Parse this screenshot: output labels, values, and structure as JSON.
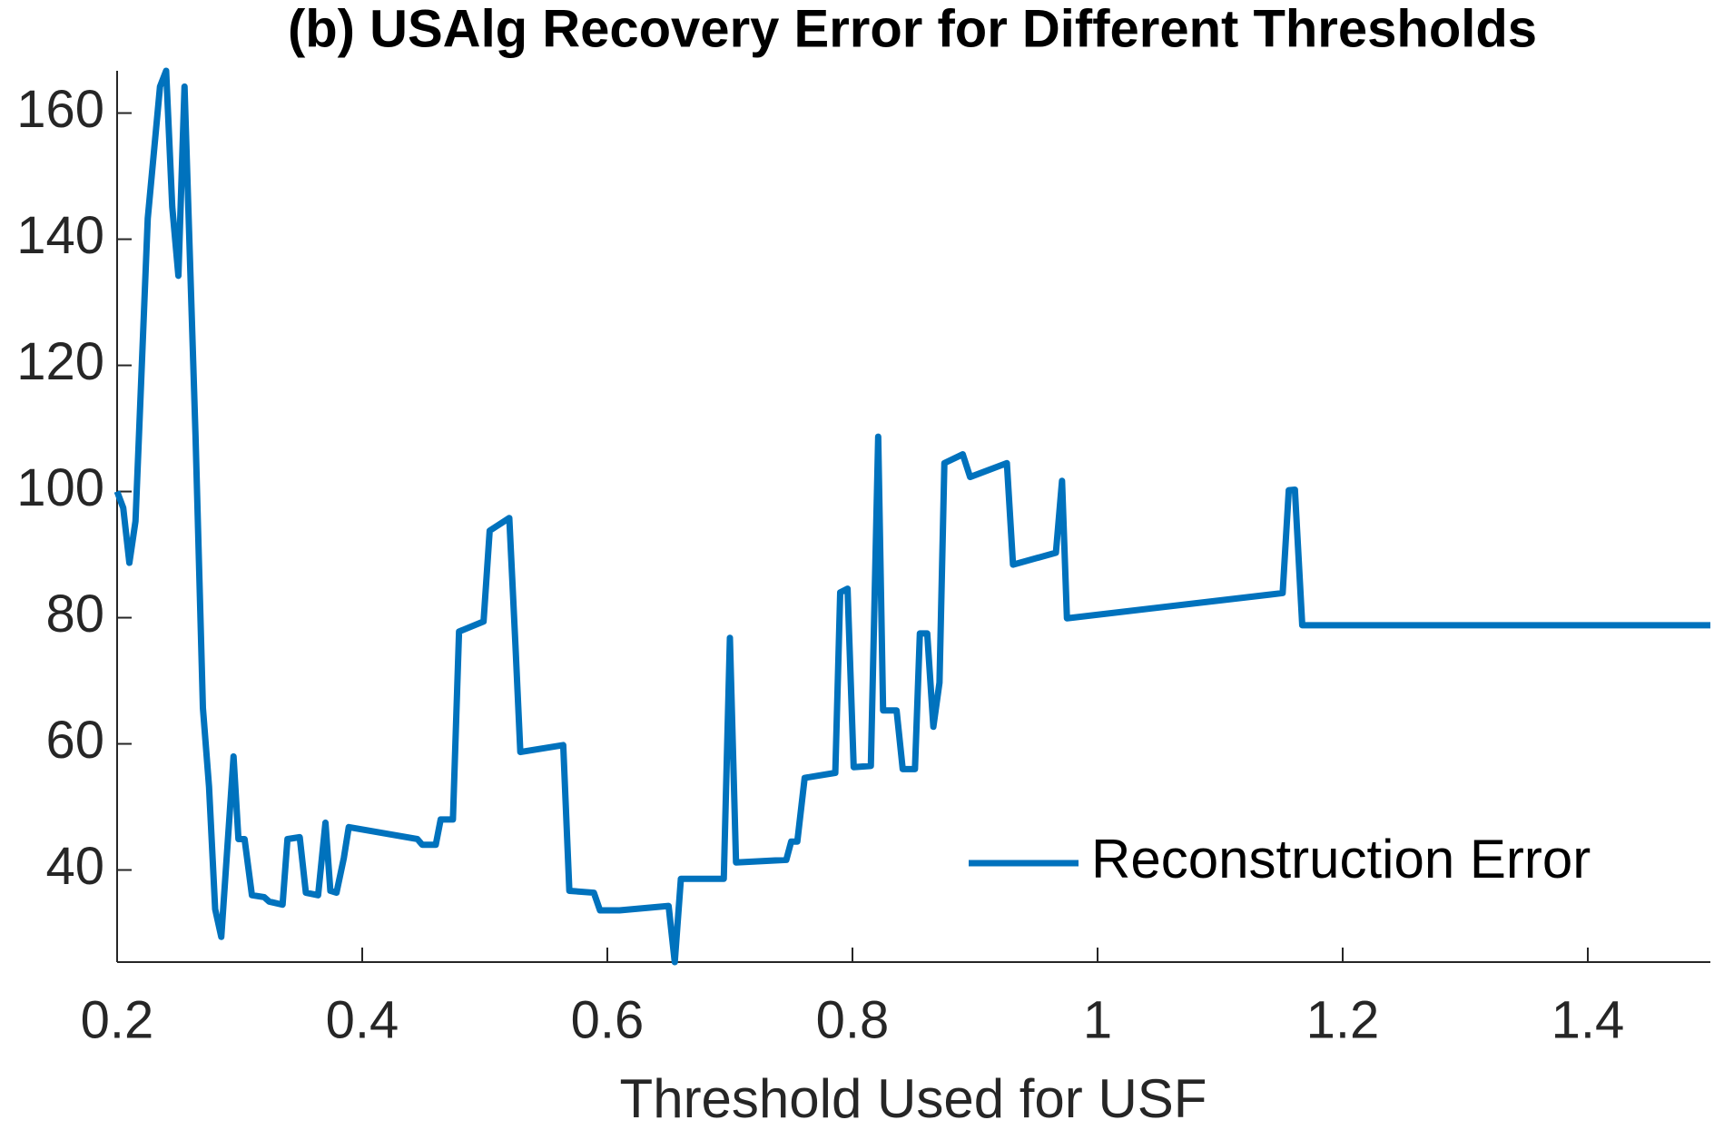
{
  "chart_data": {
    "type": "line",
    "title": "(b) USAlg Recovery Error for Different Thresholds",
    "xlabel": "Threshold Used for USF",
    "x": [
      0.2,
      0.205,
      0.21,
      0.215,
      0.225,
      0.235,
      0.24,
      0.245,
      0.25,
      0.255,
      0.264,
      0.27,
      0.275,
      0.28,
      0.285,
      0.295,
      0.299,
      0.304,
      0.31,
      0.32,
      0.324,
      0.335,
      0.339,
      0.349,
      0.354,
      0.364,
      0.37,
      0.374,
      0.379,
      0.385,
      0.389,
      0.445,
      0.449,
      0.46,
      0.464,
      0.474,
      0.479,
      0.499,
      0.504,
      0.52,
      0.525,
      0.529,
      0.564,
      0.569,
      0.589,
      0.594,
      0.61,
      0.65,
      0.655,
      0.66,
      0.695,
      0.7,
      0.705,
      0.746,
      0.75,
      0.755,
      0.761,
      0.786,
      0.79,
      0.796,
      0.801,
      0.815,
      0.821,
      0.825,
      0.836,
      0.841,
      0.851,
      0.855,
      0.861,
      0.866,
      0.871,
      0.875,
      0.89,
      0.896,
      0.926,
      0.931,
      0.966,
      0.971,
      0.975,
      1.151,
      1.156,
      1.161,
      1.167,
      1.5
    ],
    "series": [
      {
        "name": "Reconstruction Error",
        "color": "#0072bd",
        "values": [
          100.0,
          97.4,
          88.7,
          95.3,
          143.3,
          164.2,
          166.7,
          145.1,
          134.2,
          164.2,
          108.7,
          65.7,
          53.2,
          33.8,
          29.4,
          58.0,
          44.9,
          44.9,
          36.0,
          35.7,
          35.0,
          34.5,
          44.9,
          45.2,
          36.4,
          36.0,
          47.5,
          36.7,
          36.4,
          41.9,
          46.8,
          44.9,
          44.0,
          44.0,
          48.0,
          48.0,
          77.8,
          79.4,
          93.8,
          95.8,
          75.7,
          58.7,
          59.8,
          36.7,
          36.4,
          33.6,
          33.6,
          34.3,
          25.4,
          38.6,
          38.6,
          76.8,
          41.2,
          41.6,
          44.5,
          44.5,
          54.6,
          55.4,
          84.0,
          84.6,
          56.3,
          56.5,
          108.7,
          65.3,
          65.3,
          56.0,
          56.0,
          77.5,
          77.5,
          62.7,
          69.7,
          104.5,
          105.9,
          102.3,
          104.5,
          88.4,
          90.3,
          101.7,
          79.9,
          83.9,
          100.2,
          100.3,
          78.8,
          78.8
        ]
      }
    ],
    "xlim": [
      0.2,
      1.5
    ],
    "ylim": [
      25.4,
      166.7
    ],
    "xticks": [
      0.2,
      0.4,
      0.6,
      0.8,
      1,
      1.2,
      1.4
    ],
    "yticks": [
      40,
      60,
      80,
      100,
      120,
      140,
      160
    ],
    "grid": false,
    "legend": "lower right"
  }
}
